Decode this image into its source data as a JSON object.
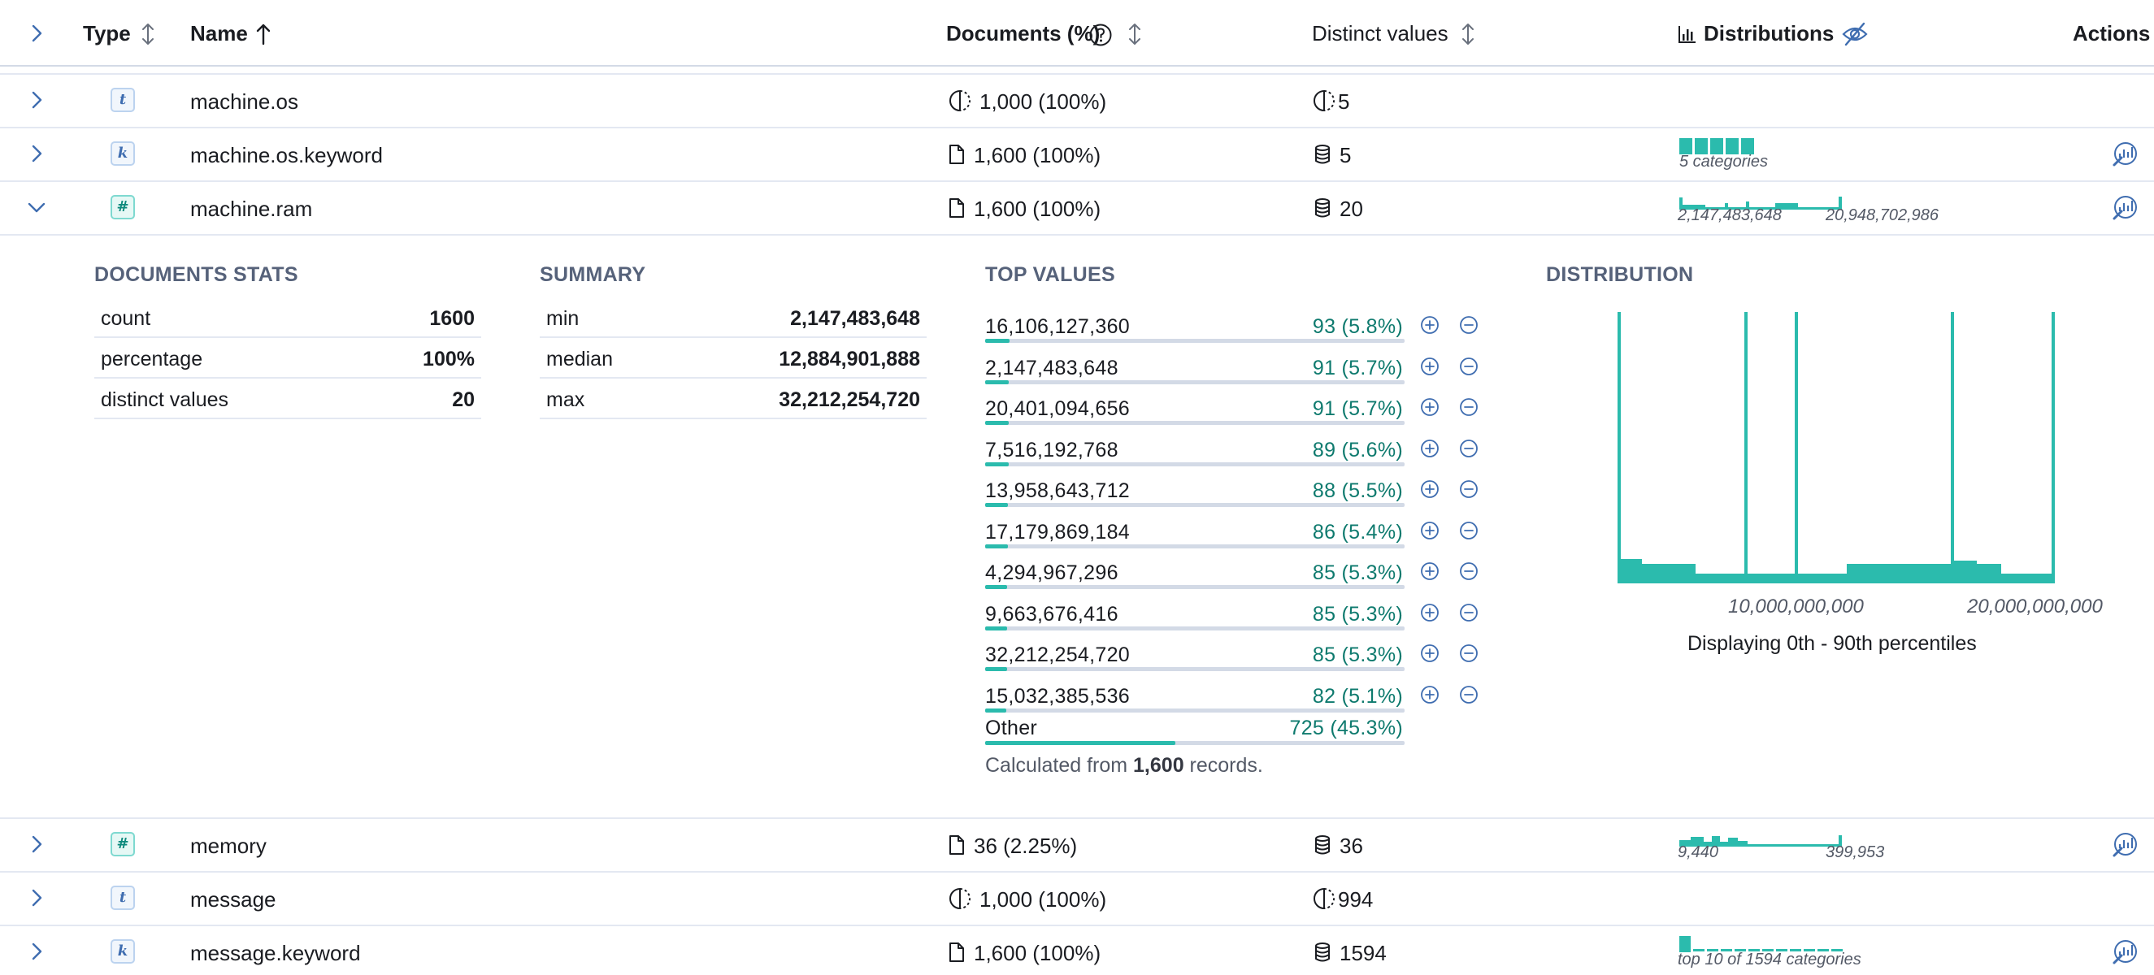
{
  "header": {
    "type_label": "Type",
    "name_label": "Name",
    "documents_label": "Documents (%)",
    "distinct_label": "Distinct values",
    "distributions_label": "Distributions",
    "actions_label": "Actions"
  },
  "rows": [
    {
      "type_badge": "t",
      "name": "machine.os",
      "documents": "1,000 (100%)",
      "distinct": "5",
      "spark_label_left": "",
      "spark_label_right": ""
    },
    {
      "type_badge": "k",
      "name": "machine.os.keyword",
      "documents": "1,600 (100%)",
      "distinct": "5",
      "spark_label_left": "5 categories",
      "spark_label_right": ""
    },
    {
      "type_badge": "#",
      "name": "machine.ram",
      "documents": "1,600 (100%)",
      "distinct": "20",
      "spark_label_left": "2,147,483,648",
      "spark_label_right": "20,948,702,986"
    },
    {
      "type_badge": "#",
      "name": "memory",
      "documents": "36 (2.25%)",
      "distinct": "36",
      "spark_label_left": "9,440",
      "spark_label_right": "399,953"
    },
    {
      "type_badge": "t",
      "name": "message",
      "documents": "1,000 (100%)",
      "distinct": "994",
      "spark_label_left": "",
      "spark_label_right": ""
    },
    {
      "type_badge": "k",
      "name": "message.keyword",
      "documents": "1,600 (100%)",
      "distinct": "1594",
      "spark_label_left": "top 10 of 1594 categories",
      "spark_label_right": ""
    }
  ],
  "expanded": {
    "documents_stats": {
      "title": "DOCUMENTS STATS",
      "items": [
        {
          "label": "count",
          "value": "1600"
        },
        {
          "label": "percentage",
          "value": "100%"
        },
        {
          "label": "distinct values",
          "value": "20"
        }
      ]
    },
    "summary": {
      "title": "SUMMARY",
      "items": [
        {
          "label": "min",
          "value": "2,147,483,648"
        },
        {
          "label": "median",
          "value": "12,884,901,888"
        },
        {
          "label": "max",
          "value": "32,212,254,720"
        }
      ]
    },
    "top_values": {
      "title": "TOP VALUES",
      "items": [
        {
          "value": "16,106,127,360",
          "count": "93 (5.8%)",
          "pct": 5.8
        },
        {
          "value": "2,147,483,648",
          "count": "91 (5.7%)",
          "pct": 5.7
        },
        {
          "value": "20,401,094,656",
          "count": "91 (5.7%)",
          "pct": 5.7
        },
        {
          "value": "7,516,192,768",
          "count": "89 (5.6%)",
          "pct": 5.6
        },
        {
          "value": "13,958,643,712",
          "count": "88 (5.5%)",
          "pct": 5.5
        },
        {
          "value": "17,179,869,184",
          "count": "86 (5.4%)",
          "pct": 5.4
        },
        {
          "value": "4,294,967,296",
          "count": "85 (5.3%)",
          "pct": 5.3
        },
        {
          "value": "9,663,676,416",
          "count": "85 (5.3%)",
          "pct": 5.3
        },
        {
          "value": "32,212,254,720",
          "count": "85 (5.3%)",
          "pct": 5.3
        },
        {
          "value": "15,032,385,536",
          "count": "82 (5.1%)",
          "pct": 5.1
        }
      ],
      "other": {
        "label": "Other",
        "count": "725 (45.3%)",
        "pct": 45.3
      },
      "calc_prefix": "Calculated from",
      "calc_count": "1,600",
      "calc_suffix": "records."
    },
    "distribution": {
      "title": "DISTRIBUTION",
      "tick_1": "10,000,000,000",
      "tick_2": "20,000,000,000",
      "caption": "Displaying 0th - 90th percentiles"
    }
  },
  "colors": {
    "accent": "#2bbbad",
    "link": "#3f6db0",
    "count_text": "#0e7a6e"
  }
}
